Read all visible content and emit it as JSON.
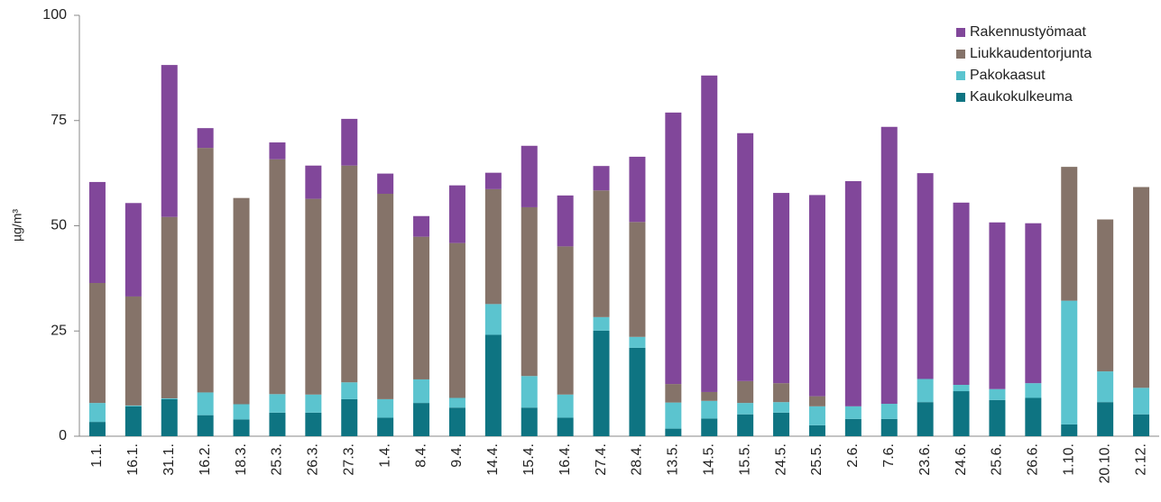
{
  "chart_data": {
    "type": "stacked_bar",
    "y_label": "µg/m³",
    "categories": [
      "1.1.",
      "16.1.",
      "31.1.",
      "16.2.",
      "18.3.",
      "25.3.",
      "26.3.",
      "27.3.",
      "1.4.",
      "8.4.",
      "9.4.",
      "14.4.",
      "15.4.",
      "16.4.",
      "27.4.",
      "28.4.",
      "13.5.",
      "14.5.",
      "15.5.",
      "24.5.",
      "25.5.",
      "2.6.",
      "7.6.",
      "23.6.",
      "24.6.",
      "25.6.",
      "26.6.",
      "1.10.",
      "20.10.",
      "2.12."
    ],
    "series": [
      {
        "name": "Kaukokulkeuma",
        "color": "#0e7482",
        "values": [
          3.4,
          7.1,
          8.8,
          5.0,
          4.0,
          5.6,
          5.6,
          8.8,
          4.4,
          7.9,
          6.8,
          24.1,
          6.8,
          4.4,
          25.1,
          21.0,
          1.8,
          4.2,
          5.2,
          5.6,
          2.6,
          4.1,
          4.1,
          8.1,
          10.7,
          8.6,
          9.1,
          2.8,
          8.1,
          5.2
        ]
      },
      {
        "name": "Pakokaasut",
        "color": "#5bc4cf",
        "values": [
          4.5,
          0.2,
          0.2,
          5.4,
          3.6,
          4.4,
          4.3,
          4.0,
          4.4,
          5.6,
          2.3,
          7.3,
          7.5,
          5.5,
          3.2,
          2.6,
          6.2,
          4.2,
          2.7,
          2.5,
          4.5,
          3.0,
          3.6,
          5.5,
          1.5,
          2.6,
          3.5,
          29.4,
          7.3,
          6.3
        ]
      },
      {
        "name": "Liukkaudentorjunta",
        "color": "#857369",
        "values": [
          28.5,
          25.9,
          43.1,
          58.1,
          49.0,
          55.8,
          46.5,
          51.5,
          48.8,
          33.9,
          36.8,
          27.3,
          40.1,
          35.2,
          30.1,
          27.3,
          4.4,
          2.1,
          5.2,
          4.5,
          2.4,
          0,
          0,
          0,
          0,
          0,
          0,
          31.8,
          36.1,
          47.7
        ]
      },
      {
        "name": "Rakennustyömaat",
        "color": "#81479a",
        "values": [
          24.0,
          22.2,
          36.1,
          4.7,
          0,
          4.0,
          7.9,
          11.1,
          4.8,
          4.9,
          13.7,
          3.9,
          14.6,
          12.1,
          5.8,
          15.5,
          64.5,
          75.2,
          58.9,
          45.2,
          47.8,
          53.5,
          65.8,
          48.9,
          43.3,
          39.6,
          38.0,
          0,
          0,
          0
        ]
      }
    ],
    "ylim": [
      0,
      100
    ],
    "yticks": [
      0,
      25,
      50,
      75,
      100
    ],
    "grid": false,
    "legend": "top-right"
  }
}
